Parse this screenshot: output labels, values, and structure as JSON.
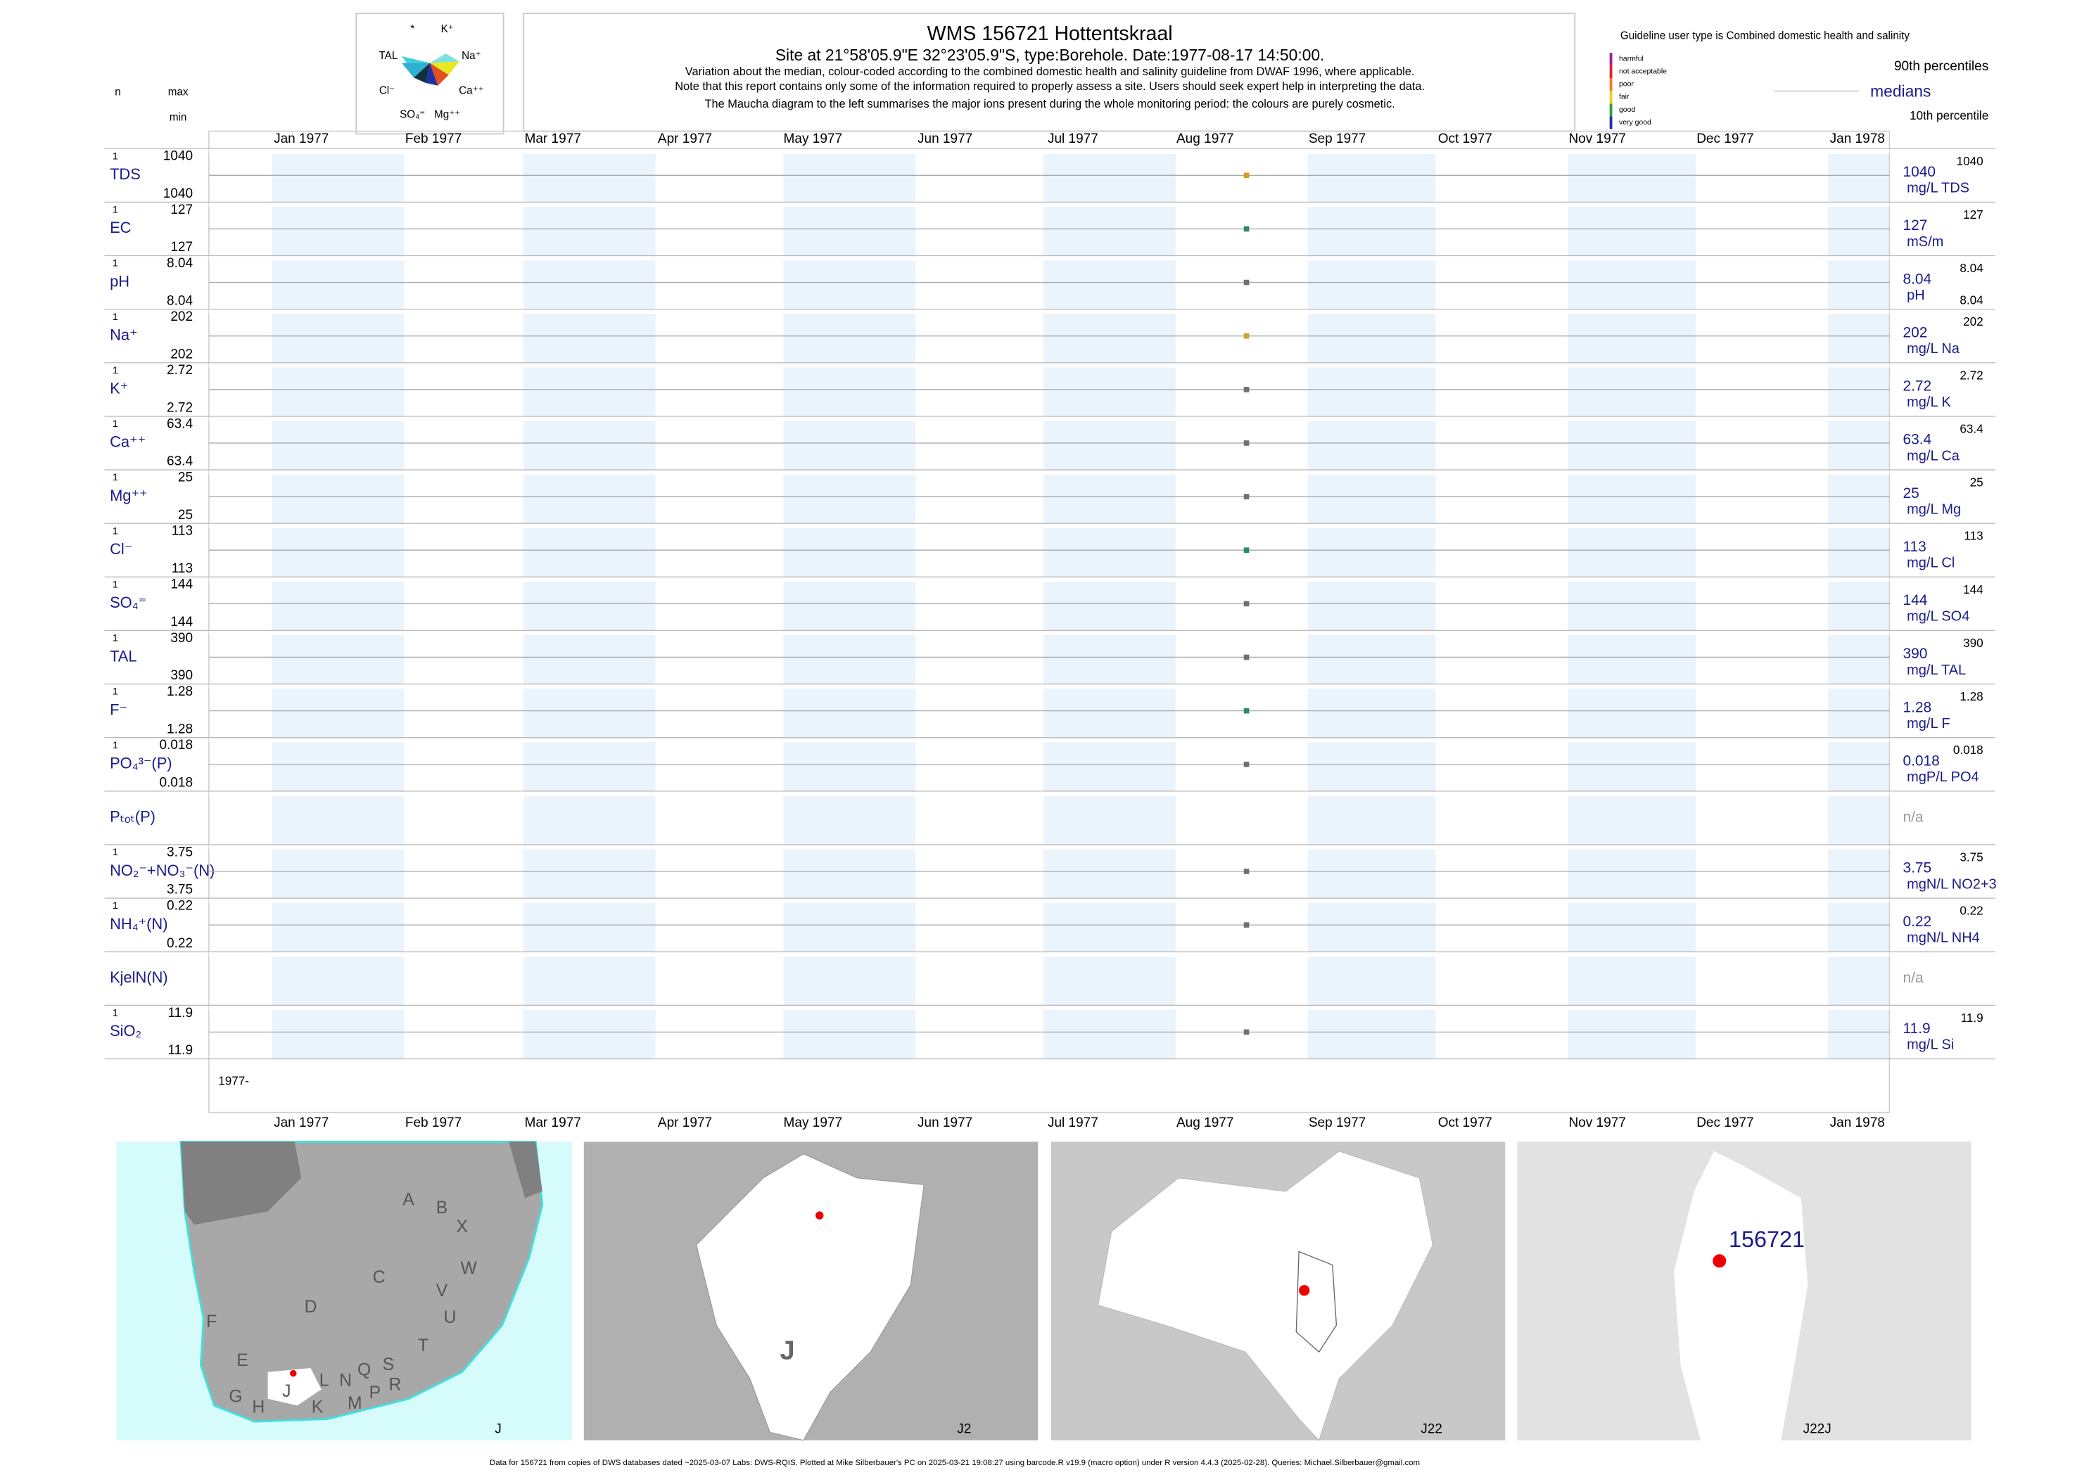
{
  "header": {
    "title": "WMS 156721  Hottentskraal",
    "subtitle": "Site at 21°58'05.9\"E 32°23'05.9\"S, type:Borehole. Date:1977-08-17 14:50:00.",
    "notes": [
      "Variation about the median,  colour-coded according to the combined domestic health and salinity guideline from DWAF 1996, where applicable.",
      "Note that this report contains only some of the information required to properly assess a site. Users should seek expert help in interpreting the data.",
      "The Maucha diagram to the left summarises the major ions present during the whole monitoring period: the colours are purely cosmetic."
    ]
  },
  "maucha": {
    "labels": [
      "*",
      "K⁺",
      "TAL",
      "Na⁺",
      "Cl⁻",
      "Ca⁺⁺",
      "SO₄⁼",
      "Mg⁺⁺"
    ]
  },
  "guideline": {
    "title": "Guideline user type is Combined domestic health and salinity",
    "classes": [
      {
        "label": "harmful",
        "color": "#a0208c"
      },
      {
        "label": "not acceptable",
        "color": "#e0202a"
      },
      {
        "label": "poor",
        "color": "#f08020"
      },
      {
        "label": "fair",
        "color": "#e8d020"
      },
      {
        "label": "good",
        "color": "#30a040"
      },
      {
        "label": "very good",
        "color": "#2030a0"
      }
    ]
  },
  "legend": {
    "p90": "90th percentiles",
    "median": "medians",
    "p10": "10th percentile"
  },
  "columns": {
    "n": "n",
    "max": "max",
    "min": "min"
  },
  "months": [
    "Jan 1977",
    "Feb 1977",
    "Mar 1977",
    "Apr 1977",
    "May 1977",
    "Jun 1977",
    "Jul 1977",
    "Aug 1977",
    "Sep 1977",
    "Oct 1977",
    "Nov 1977",
    "Dec 1977",
    "Jan 1978"
  ],
  "year_label": "1977-",
  "rows": [
    {
      "label": "TDS",
      "n": 1,
      "max": 1040,
      "min": 1040,
      "median": 1040,
      "unit": "mg/L TDS",
      "p90": 1040,
      "color": "#d4a020"
    },
    {
      "label": "EC",
      "n": 1,
      "max": 127,
      "min": 127,
      "median": 127,
      "unit": "mS/m",
      "p90": 127,
      "color": "#2a8a6a"
    },
    {
      "label": "pH",
      "n": 1,
      "max": 8.04,
      "min": 8.04,
      "median": 8.04,
      "unit": "pH",
      "p90": 8.04,
      "p10": 8.04,
      "color": "#707070"
    },
    {
      "label": "Na⁺",
      "n": 1,
      "max": 202,
      "min": 202,
      "median": 202,
      "unit": "mg/L Na",
      "p90": 202,
      "color": "#d4a020"
    },
    {
      "label": "K⁺",
      "n": 1,
      "max": 2.72,
      "min": 2.72,
      "median": 2.72,
      "unit": "mg/L K",
      "p90": 2.72,
      "color": "#707070"
    },
    {
      "label": "Ca⁺⁺",
      "n": 1,
      "max": 63.4,
      "min": 63.4,
      "median": 63.4,
      "unit": "mg/L Ca",
      "p90": 63.4,
      "color": "#707070"
    },
    {
      "label": "Mg⁺⁺",
      "n": 1,
      "max": 25,
      "min": 25,
      "median": 25,
      "unit": "mg/L Mg",
      "p90": 25,
      "color": "#707070"
    },
    {
      "label": "Cl⁻",
      "n": 1,
      "max": 113,
      "min": 113,
      "median": 113,
      "unit": "mg/L Cl",
      "p90": 113,
      "color": "#2a8a6a"
    },
    {
      "label": "SO₄⁼",
      "n": 1,
      "max": 144,
      "min": 144,
      "median": 144,
      "unit": "mg/L SO4",
      "p90": 144,
      "color": "#707070"
    },
    {
      "label": "TAL",
      "n": 1,
      "max": 390,
      "min": 390,
      "median": 390,
      "unit": "mg/L TAL",
      "p90": 390,
      "color": "#707070"
    },
    {
      "label": "F⁻",
      "n": 1,
      "max": 1.28,
      "min": 1.28,
      "median": 1.28,
      "unit": "mg/L F",
      "p90": 1.28,
      "color": "#2a8a6a"
    },
    {
      "label": "PO₄³⁻(P)",
      "n": 1,
      "max": 0.018,
      "min": 0.018,
      "median": 0.018,
      "unit": "mgP/L PO4",
      "p90": 0.018,
      "color": "#707070"
    },
    {
      "label": "Pₜₒₜ(P)",
      "median": "n/a"
    },
    {
      "label": "NO₂⁻+NO₃⁻(N)",
      "n": 1,
      "max": 3.75,
      "min": 3.75,
      "median": 3.75,
      "unit": "mgN/L NO2+3",
      "p90": 3.75,
      "color": "#707070"
    },
    {
      "label": "NH₄⁺(N)",
      "n": 1,
      "max": 0.22,
      "min": 0.22,
      "median": 0.22,
      "unit": "mgN/L NH4",
      "p90": 0.22,
      "color": "#707070"
    },
    {
      "label": "KjelN(N)",
      "median": "n/a"
    },
    {
      "label": "SiO₂",
      "n": 1,
      "max": 11.9,
      "min": 11.9,
      "median": 11.9,
      "unit": "mg/L Si",
      "p90": 11.9,
      "color": "#707070"
    }
  ],
  "maps": [
    {
      "label": "J",
      "regions": [
        "A",
        "B",
        "X",
        "W",
        "C",
        "V",
        "U",
        "D",
        "T",
        "F",
        "E",
        "S",
        "R",
        "Q",
        "N",
        "L",
        "M",
        "P",
        "G",
        "H",
        "J",
        "K"
      ]
    },
    {
      "label": "J2",
      "regions": [
        "J"
      ]
    },
    {
      "label": "J22"
    },
    {
      "label": "J22J",
      "site": "156721"
    }
  ],
  "footer": "Data for 156721 from copies of DWS databases dated ~2025-03-07 Labs: DWS-RQIS. Plotted at Mike Silberbauer's PC on 2025-03-21 19:08:27 using barcode.R v19.9 (macro option) under R version 4.4.3 (2025-02-28). Queries: Michael.Silberbauer@gmail.com"
}
